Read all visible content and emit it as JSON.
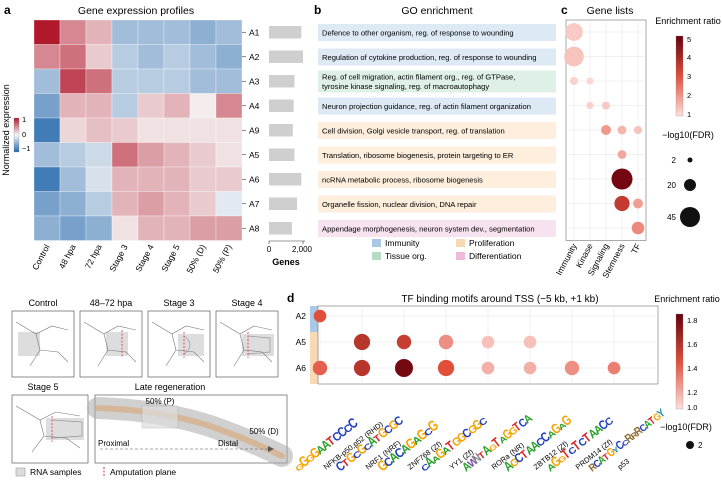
{
  "panels": {
    "a": {
      "letter": "a",
      "title": "Gene expression profiles",
      "ylabel": "Normalized expression",
      "colorbar_ticks": [
        "1",
        "0",
        "−1"
      ],
      "columns": [
        "Control",
        "48 hpa",
        "72 hpa",
        "Stage 3",
        "Stage 4",
        "Stage 5",
        "50% (D)",
        "50% (P)"
      ],
      "rows": [
        "A1",
        "A2",
        "A3",
        "A4",
        "A9",
        "A5",
        "A6",
        "A7",
        "A8"
      ],
      "heatmap": [
        [
          1.0,
          0.5,
          0.3,
          -0.4,
          -0.4,
          -0.4,
          -0.5,
          -0.4
        ],
        [
          0.5,
          0.6,
          0.2,
          -0.3,
          -0.4,
          -0.3,
          -0.4,
          -0.5
        ],
        [
          -0.4,
          0.8,
          0.6,
          -0.3,
          -0.3,
          -0.3,
          -0.4,
          -0.4
        ],
        [
          -0.6,
          0.3,
          0.3,
          -0.3,
          0.2,
          0.3,
          0.05,
          0.5
        ],
        [
          -0.85,
          0.15,
          0.25,
          0.2,
          0.1,
          0.1,
          0.1,
          0.1
        ],
        [
          -0.4,
          -0.3,
          -0.2,
          0.6,
          0.4,
          0.3,
          0.2,
          0.1
        ],
        [
          -0.85,
          -0.4,
          -0.15,
          0.3,
          0.3,
          0.3,
          0.2,
          0.2
        ],
        [
          -0.6,
          -0.5,
          -0.3,
          0.3,
          0.4,
          0.3,
          0.2,
          -0.1
        ],
        [
          -0.5,
          -0.6,
          -0.5,
          0.1,
          0.3,
          0.3,
          0.4,
          0.4
        ]
      ],
      "genes": [
        1900,
        2000,
        1500,
        1450,
        1400,
        1500,
        1900,
        1650,
        1350
      ],
      "genes_ticks": [
        "0",
        "2,000"
      ],
      "genes_xlabel": "Genes"
    },
    "b": {
      "letter": "b",
      "title": "GO enrichment",
      "terms": [
        {
          "text": "Defence to other organism, reg. of response to wounding",
          "cat": "immunity"
        },
        {
          "text": "Regulation of cytokine production, reg. of response to wounding",
          "cat": "immunity"
        },
        {
          "text": "Reg. of cell migration, actin filament org., reg. of GTPase, tyrosine kinase signaling, reg. of macroautophagy",
          "cat": "tissue"
        },
        {
          "text": "Neuron projection guidance, reg. of actin filament organization",
          "cat": "immunity"
        },
        {
          "text": "Cell division, Golgi vesicle transport, reg. of translation",
          "cat": "proliferation"
        },
        {
          "text": "Translation, ribosome biogenesis, protein targeting to ER",
          "cat": "proliferation"
        },
        {
          "text": "ncRNA metabolic process, ribosome biogenesis",
          "cat": "proliferation"
        },
        {
          "text": "Organelle fission, nuclear division, DNA repair",
          "cat": "proliferation"
        },
        {
          "text": "Appendage morphogenesis, neuron system dev., segmentation",
          "cat": "differentiation"
        }
      ],
      "legend": [
        {
          "key": "immunity",
          "label": "Immunity"
        },
        {
          "key": "tissue",
          "label": "Tissue org."
        },
        {
          "key": "proliferation",
          "label": "Proliferation"
        },
        {
          "key": "differentiation",
          "label": "Differentiation"
        }
      ],
      "category_colors": {
        "immunity": "#dde9f5",
        "tissue": "#dff0e6",
        "proliferation": "#fdeedd",
        "differentiation": "#f7e2ef"
      },
      "legend_colors": {
        "immunity": "#a9c8e6",
        "tissue": "#b7dcc4",
        "proliferation": "#f8d9b3",
        "differentiation": "#efbbd9"
      }
    },
    "c": {
      "letter": "c",
      "title": "Gene lists",
      "columns": [
        "Immunity",
        "Kinase",
        "Signaling",
        "Stemness",
        "TF"
      ],
      "points": [
        {
          "row": 0,
          "col": 0,
          "ratio": 1.3,
          "fdr": 30
        },
        {
          "row": 1,
          "col": 0,
          "ratio": 1.4,
          "fdr": 38
        },
        {
          "row": 2,
          "col": 0,
          "ratio": 1.2,
          "fdr": 3
        },
        {
          "row": 2,
          "col": 1,
          "ratio": 1.1,
          "fdr": 2
        },
        {
          "row": 3,
          "col": 1,
          "ratio": 1.2,
          "fdr": 2
        },
        {
          "row": 3,
          "col": 2,
          "ratio": 1.3,
          "fdr": 3
        },
        {
          "row": 4,
          "col": 2,
          "ratio": 2.0,
          "fdr": 6
        },
        {
          "row": 4,
          "col": 3,
          "ratio": 1.6,
          "fdr": 4
        },
        {
          "row": 4,
          "col": 4,
          "ratio": 1.4,
          "fdr": 3
        },
        {
          "row": 5,
          "col": 3,
          "ratio": 1.8,
          "fdr": 4
        },
        {
          "row": 6,
          "col": 3,
          "ratio": 4.8,
          "fdr": 45
        },
        {
          "row": 7,
          "col": 3,
          "ratio": 3.5,
          "fdr": 20
        },
        {
          "row": 7,
          "col": 4,
          "ratio": 1.9,
          "fdr": 6
        },
        {
          "row": 8,
          "col": 4,
          "ratio": 2.2,
          "fdr": 12
        }
      ],
      "colorbar_title": "Enrichment ratio",
      "colorbar_ticks": [
        "5",
        "4",
        "3",
        "2",
        "1"
      ],
      "size_title": "−log10(FDR)",
      "size_ticks": [
        "2",
        "20",
        "45"
      ]
    },
    "d": {
      "letter": "d",
      "title": "TF binding motifs around TSS (−5 kb, +1 kb)",
      "rows": [
        "A2",
        "A5",
        "A6"
      ],
      "motifs": [
        "NFKB-p50,p52 (RHD)",
        "NRF1 (NRF)",
        "ZNF768 (Zf)",
        "YY1 (Zf)",
        "RORa (NR)",
        "ZBTB12 (Zf)",
        "PRDM14 (Zf)",
        "p53"
      ],
      "motif_letters": [
        "GGGGAATCCCC",
        "CTGCGCATGCGC",
        "GCACAGAGCG",
        "CAAGATGGCGGC",
        "AWNTAGTAGGTCA",
        "AGCTAACCAGAG",
        "AGGTCTCTAACC",
        "RCATGYCCRRRCATGY"
      ],
      "points": [
        {
          "row": 0,
          "col": 0,
          "ratio": 1.45,
          "fdr": 2
        },
        {
          "row": 1,
          "col": 1,
          "ratio": 1.6,
          "fdr": 4
        },
        {
          "row": 1,
          "col": 2,
          "ratio": 1.55,
          "fdr": 3
        },
        {
          "row": 1,
          "col": 3,
          "ratio": 1.25,
          "fdr": 3
        },
        {
          "row": 1,
          "col": 4,
          "ratio": 1.1,
          "fdr": 2
        },
        {
          "row": 1,
          "col": 5,
          "ratio": 1.1,
          "fdr": 2
        },
        {
          "row": 2,
          "col": 0,
          "ratio": 1.4,
          "fdr": 3
        },
        {
          "row": 2,
          "col": 1,
          "ratio": 1.6,
          "fdr": 4
        },
        {
          "row": 2,
          "col": 2,
          "ratio": 1.85,
          "fdr": 5
        },
        {
          "row": 2,
          "col": 3,
          "ratio": 1.45,
          "fdr": 4
        },
        {
          "row": 2,
          "col": 4,
          "ratio": 1.15,
          "fdr": 2
        },
        {
          "row": 2,
          "col": 5,
          "ratio": 1.15,
          "fdr": 2
        },
        {
          "row": 2,
          "col": 6,
          "ratio": 1.25,
          "fdr": 3
        },
        {
          "row": 2,
          "col": 7,
          "ratio": 1.3,
          "fdr": 2
        }
      ],
      "colorbar_title": "Enrichment ratio",
      "colorbar_ticks": [
        "1.8",
        "1.6",
        "1.4",
        "1.2",
        "1.0"
      ],
      "size_title": "−log10(FDR)",
      "size_tick": "2"
    },
    "schematic": {
      "labels": [
        "Control",
        "48–72 hpa",
        "Stage 3",
        "Stage 4",
        "Stage 5",
        "Late regeneration"
      ],
      "fifty_p": "50% (P)",
      "fifty_d": "50% (D)",
      "proximal": "Proximal",
      "distal": "Distal",
      "legend_rna": "RNA samples",
      "legend_amp": "Amputation plane"
    }
  },
  "colors": {
    "heat_high": "#b2182b",
    "heat_mid": "#f7f7f7",
    "heat_low": "#2166ac",
    "enrich_low": "#fde0dd",
    "enrich_high": "#67000d"
  }
}
